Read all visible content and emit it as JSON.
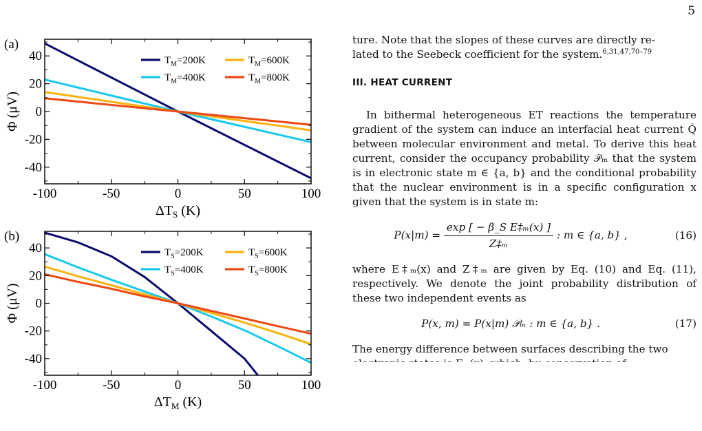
{
  "page_number": "5",
  "colors": {
    "T200": "#0b0b6e",
    "T400": "#19c8ee",
    "T600": "#f9b20f",
    "T800": "#ee4811"
  },
  "chart_data": [
    {
      "panel": "(a)",
      "type": "line",
      "xlabel": "ΔT_S (K)",
      "ylabel": "Φ (μV)",
      "xlim": [
        -100,
        100
      ],
      "ylim": [
        -52,
        52
      ],
      "xticks": [
        "-100",
        "-50",
        "0",
        "50",
        "100"
      ],
      "yticks": [
        "40",
        "20",
        "0",
        "-20",
        "-40"
      ],
      "legend_placement": "top-right",
      "series": [
        {
          "name": "T_M=200K",
          "color_key": "T200",
          "x": [
            -100,
            0,
            100
          ],
          "y": [
            49,
            0,
            -48
          ]
        },
        {
          "name": "T_M=400K",
          "color_key": "T400",
          "x": [
            -100,
            0,
            100
          ],
          "y": [
            23,
            0,
            -22
          ]
        },
        {
          "name": "T_M=600K",
          "color_key": "T600",
          "x": [
            -100,
            0,
            100
          ],
          "y": [
            14,
            0,
            -13.5
          ]
        },
        {
          "name": "T_M=800K",
          "color_key": "T800",
          "x": [
            -100,
            0,
            100
          ],
          "y": [
            9.5,
            0,
            -9.5
          ]
        }
      ]
    },
    {
      "panel": "(b)",
      "type": "line",
      "xlabel": "ΔT_M (K)",
      "ylabel": "Φ (μV)",
      "xlim": [
        -100,
        100
      ],
      "ylim": [
        -52,
        52
      ],
      "xticks": [
        "-100",
        "-50",
        "0",
        "50",
        "100"
      ],
      "yticks": [
        "40",
        "20",
        "0",
        "-20",
        "-40"
      ],
      "legend_placement": "top-right",
      "series": [
        {
          "name": "T_S=200K",
          "color_key": "T200",
          "x": [
            -100,
            -75,
            -50,
            -25,
            0,
            25,
            50,
            60
          ],
          "y": [
            51,
            44,
            34,
            19,
            0,
            -20,
            -40,
            -52
          ]
        },
        {
          "name": "T_S=400K",
          "color_key": "T400",
          "x": [
            -100,
            -75,
            -50,
            -25,
            0,
            25,
            50,
            75,
            100
          ],
          "y": [
            35.5,
            26,
            17,
            8.5,
            0,
            -9.5,
            -19.5,
            -31,
            -43
          ]
        },
        {
          "name": "T_S=600K",
          "color_key": "T600",
          "x": [
            -100,
            -75,
            -50,
            -25,
            0,
            25,
            50,
            75,
            100
          ],
          "y": [
            26.5,
            19.5,
            13,
            6.5,
            0,
            -7,
            -14,
            -21.5,
            -29.5
          ]
        },
        {
          "name": "T_S=800K",
          "color_key": "T800",
          "x": [
            -100,
            -75,
            -50,
            -25,
            0,
            25,
            50,
            75,
            100
          ],
          "y": [
            21,
            15.5,
            10.5,
            5,
            0,
            -5.5,
            -11,
            -16.5,
            -22
          ]
        }
      ]
    }
  ],
  "text": {
    "para_top_1": "ture. Note that the slopes of these curves are directly re-",
    "para_top_2": "lated to the Seebeck coefficient for the system.",
    "cites": "6,31,47,70–79",
    "section": "III.   HEAT CURRENT",
    "para_main": "In bithermal heterogeneous ET reactions the temperature gradient of the system can induce an interfacial heat current Q̇ between molecular environment and metal. To derive this heat current, consider the occupancy probability 𝒫ₘ that the system is in electronic state m ∈ {a, b} and the conditional probability that the nuclear environment is in a specific configuration x given that the system is in state m:",
    "eq16_lhs": "P(x|m) =",
    "eq16_numer": "exp [ − β_S E‡ₘ(x) ]",
    "eq16_denom": "Z‡ₘ",
    "eq16_rhs": ": m ∈ {a, b} ,",
    "eq16_num": "(16)",
    "para_after16": "where E‡ₘ(x) and Z‡ₘ are given by Eq. (10) and Eq. (11), respectively. We denote the joint probability distribution of these two independent events as",
    "eq17": "P(x, m) = P(x|m) 𝒫ₘ : m ∈ {a, b} .",
    "eq17_num": "(17)",
    "para_bottom": "The energy difference between surfaces describing the two",
    "para_cut": "electronic states is Eₘ(x), which, by conservation of"
  }
}
